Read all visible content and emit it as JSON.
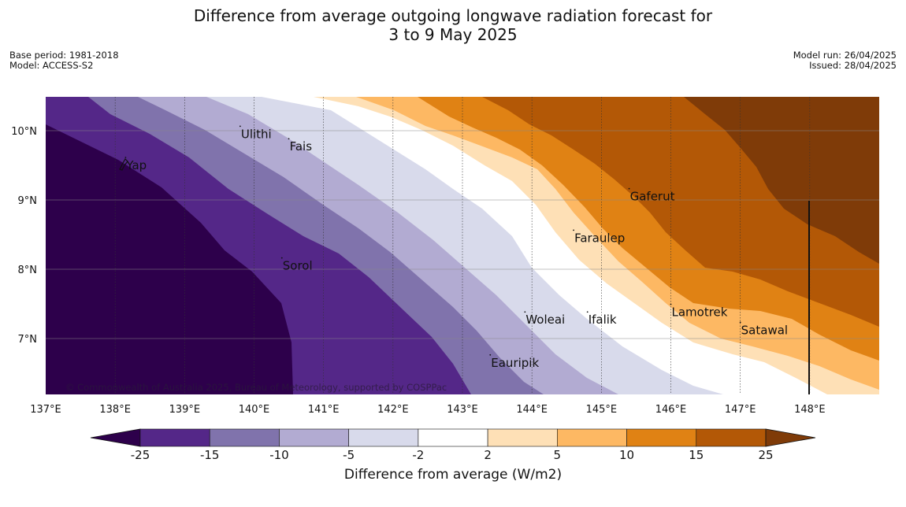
{
  "title_line1": "Difference from average outgoing longwave radiation forecast for",
  "title_line2": "3 to 9 May 2025",
  "meta_left": {
    "base_period": "Base period: 1981-2018",
    "model": "Model: ACCESS-S2"
  },
  "meta_right": {
    "model_run": "Model run: 26/04/2025",
    "issued": "Issued: 28/04/2025"
  },
  "copyright": "© Commonwealth of Australia 2025, Bureau of Meteorology, supported by COSPPac",
  "map": {
    "lon_ticks": [
      "137°E",
      "138°E",
      "139°E",
      "140°E",
      "141°E",
      "142°E",
      "143°E",
      "144°E",
      "145°E",
      "146°E",
      "147°E",
      "148°E"
    ],
    "lat_ticks": [
      "10°N",
      "9°N",
      "8°N",
      "7°N"
    ],
    "lon_range": [
      137,
      149
    ],
    "lat_range": [
      6.2,
      10.5
    ],
    "places": [
      {
        "name": "Ulithi",
        "lon": 139.8,
        "lat": 9.95
      },
      {
        "name": "Fais",
        "lon": 140.5,
        "lat": 9.77
      },
      {
        "name": "Yap",
        "lon": 138.15,
        "lat": 9.5
      },
      {
        "name": "Gaferut",
        "lon": 145.4,
        "lat": 9.05
      },
      {
        "name": "Faraulep",
        "lon": 144.6,
        "lat": 8.45
      },
      {
        "name": "Sorol",
        "lon": 140.4,
        "lat": 8.05
      },
      {
        "name": "Lamotrek",
        "lon": 146.0,
        "lat": 7.38
      },
      {
        "name": "Satawal",
        "lon": 147.0,
        "lat": 7.12
      },
      {
        "name": "Woleai",
        "lon": 143.9,
        "lat": 7.27
      },
      {
        "name": "Ifalik",
        "lon": 144.8,
        "lat": 7.27
      },
      {
        "name": "Eauripik",
        "lon": 143.4,
        "lat": 6.65
      }
    ],
    "palette": [
      "#2d004b",
      "#542788",
      "#8073ac",
      "#b2abd2",
      "#d8daeb",
      "#ffffff",
      "#fee0b6",
      "#fdb863",
      "#e08214",
      "#b35806",
      "#7f3b08"
    ]
  },
  "colorbar": {
    "ticks": [
      "-25",
      "-15",
      "-10",
      "-5",
      "-2",
      "2",
      "5",
      "10",
      "15",
      "25"
    ],
    "colors": [
      "#2d004b",
      "#542788",
      "#8073ac",
      "#b2abd2",
      "#d8daeb",
      "#ffffff",
      "#fee0b6",
      "#fdb863",
      "#e08214",
      "#b35806",
      "#7f3b08"
    ],
    "label": "Difference from average (W/m2)"
  }
}
